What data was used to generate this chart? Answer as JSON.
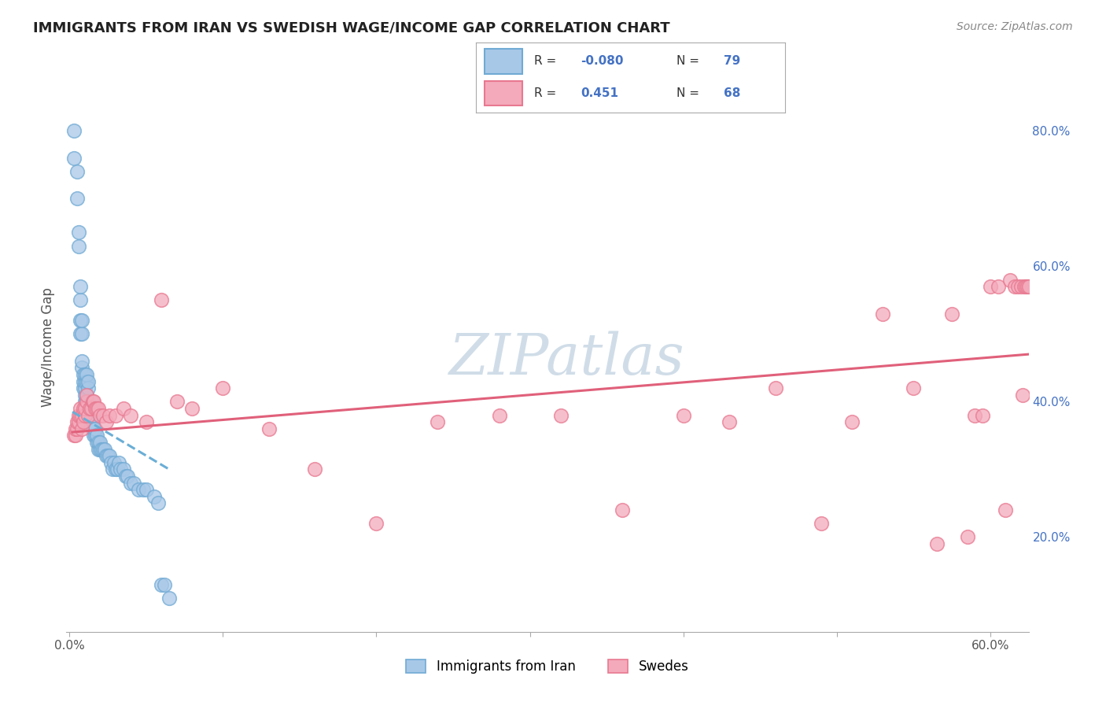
{
  "title": "IMMIGRANTS FROM IRAN VS SWEDISH WAGE/INCOME GAP CORRELATION CHART",
  "source": "Source: ZipAtlas.com",
  "ylabel": "Wage/Income Gap",
  "yticks": [
    0.2,
    0.4,
    0.6,
    0.8
  ],
  "ytick_labels": [
    "20.0%",
    "40.0%",
    "60.0%",
    "80.0%"
  ],
  "xlim": [
    -0.002,
    0.625
  ],
  "ylim": [
    0.06,
    0.9
  ],
  "legend_iran_R": "-0.080",
  "legend_iran_N": "79",
  "legend_swedes_R": "0.451",
  "legend_swedes_N": "68",
  "color_iran": "#a8c8e8",
  "color_iran_edge": "#70aad4",
  "color_iran_line": "#6aaed6",
  "color_swedes": "#f4aabb",
  "color_swedes_edge": "#e87890",
  "color_swedes_line": "#e0607a",
  "color_blue_text": "#4472c4",
  "background_color": "#ffffff",
  "grid_color": "#d0d0d0",
  "watermark_color": "#d0dde8",
  "iran_x": [
    0.003,
    0.003,
    0.005,
    0.005,
    0.006,
    0.006,
    0.007,
    0.007,
    0.007,
    0.007,
    0.008,
    0.008,
    0.008,
    0.008,
    0.009,
    0.009,
    0.009,
    0.01,
    0.01,
    0.01,
    0.01,
    0.01,
    0.011,
    0.011,
    0.011,
    0.011,
    0.011,
    0.012,
    0.012,
    0.012,
    0.012,
    0.012,
    0.013,
    0.013,
    0.013,
    0.014,
    0.014,
    0.014,
    0.014,
    0.015,
    0.015,
    0.015,
    0.015,
    0.016,
    0.016,
    0.017,
    0.017,
    0.018,
    0.018,
    0.019,
    0.019,
    0.02,
    0.02,
    0.021,
    0.022,
    0.023,
    0.024,
    0.025,
    0.026,
    0.027,
    0.028,
    0.029,
    0.03,
    0.031,
    0.032,
    0.033,
    0.035,
    0.037,
    0.038,
    0.04,
    0.042,
    0.045,
    0.048,
    0.05,
    0.055,
    0.058,
    0.06,
    0.062,
    0.065
  ],
  "iran_y": [
    0.76,
    0.8,
    0.7,
    0.74,
    0.63,
    0.65,
    0.55,
    0.57,
    0.5,
    0.52,
    0.45,
    0.46,
    0.5,
    0.52,
    0.42,
    0.43,
    0.44,
    0.4,
    0.41,
    0.42,
    0.43,
    0.44,
    0.4,
    0.4,
    0.41,
    0.43,
    0.44,
    0.38,
    0.39,
    0.4,
    0.42,
    0.43,
    0.37,
    0.38,
    0.39,
    0.37,
    0.38,
    0.39,
    0.4,
    0.36,
    0.37,
    0.38,
    0.39,
    0.35,
    0.36,
    0.35,
    0.36,
    0.34,
    0.35,
    0.33,
    0.34,
    0.33,
    0.34,
    0.33,
    0.33,
    0.33,
    0.32,
    0.32,
    0.32,
    0.31,
    0.3,
    0.31,
    0.3,
    0.3,
    0.31,
    0.3,
    0.3,
    0.29,
    0.29,
    0.28,
    0.28,
    0.27,
    0.27,
    0.27,
    0.26,
    0.25,
    0.13,
    0.13,
    0.11
  ],
  "swedes_x": [
    0.003,
    0.004,
    0.004,
    0.005,
    0.005,
    0.006,
    0.006,
    0.007,
    0.007,
    0.008,
    0.008,
    0.009,
    0.009,
    0.01,
    0.01,
    0.011,
    0.011,
    0.012,
    0.013,
    0.014,
    0.015,
    0.016,
    0.017,
    0.018,
    0.019,
    0.02,
    0.022,
    0.024,
    0.026,
    0.03,
    0.035,
    0.04,
    0.05,
    0.06,
    0.07,
    0.08,
    0.1,
    0.13,
    0.16,
    0.2,
    0.24,
    0.28,
    0.32,
    0.36,
    0.4,
    0.43,
    0.46,
    0.49,
    0.51,
    0.53,
    0.55,
    0.565,
    0.575,
    0.585,
    0.59,
    0.595,
    0.6,
    0.605,
    0.61,
    0.613,
    0.616,
    0.618,
    0.62,
    0.621,
    0.622,
    0.623,
    0.624,
    0.625
  ],
  "swedes_y": [
    0.35,
    0.35,
    0.36,
    0.36,
    0.37,
    0.37,
    0.38,
    0.38,
    0.39,
    0.36,
    0.38,
    0.37,
    0.39,
    0.38,
    0.39,
    0.4,
    0.41,
    0.38,
    0.39,
    0.39,
    0.4,
    0.4,
    0.39,
    0.39,
    0.39,
    0.38,
    0.38,
    0.37,
    0.38,
    0.38,
    0.39,
    0.38,
    0.37,
    0.55,
    0.4,
    0.39,
    0.42,
    0.36,
    0.3,
    0.22,
    0.37,
    0.38,
    0.38,
    0.24,
    0.38,
    0.37,
    0.42,
    0.22,
    0.37,
    0.53,
    0.42,
    0.19,
    0.53,
    0.2,
    0.38,
    0.38,
    0.57,
    0.57,
    0.24,
    0.58,
    0.57,
    0.57,
    0.57,
    0.41,
    0.57,
    0.57,
    0.57,
    0.57
  ],
  "iran_line_x": [
    0.002,
    0.065
  ],
  "iran_line_y": [
    0.385,
    0.3
  ],
  "swedes_line_x": [
    0.002,
    0.625
  ],
  "swedes_line_y": [
    0.355,
    0.47
  ]
}
